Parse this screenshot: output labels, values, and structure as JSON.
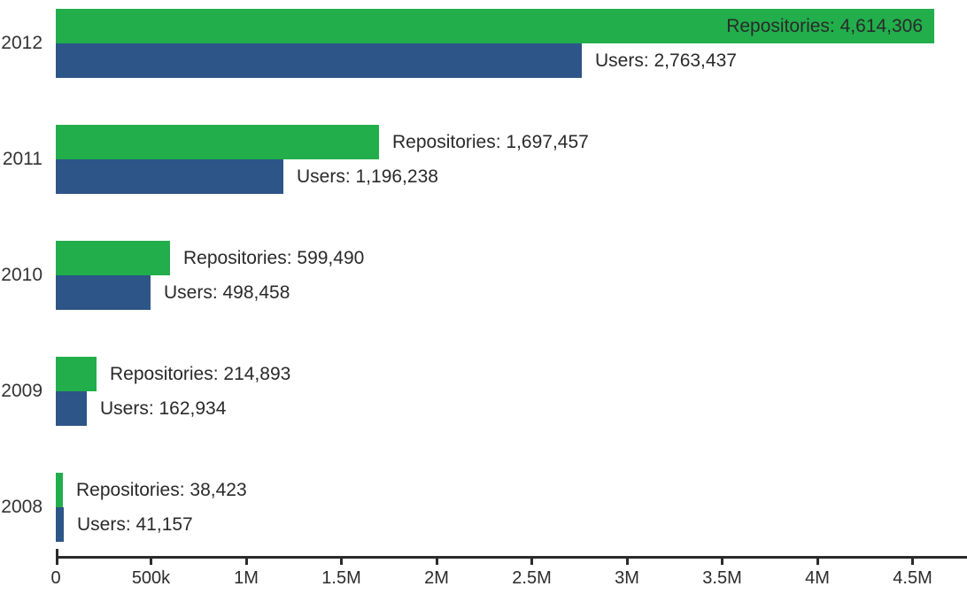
{
  "chart_data": {
    "type": "bar",
    "orientation": "horizontal",
    "title": "",
    "categories": [
      "2012",
      "2011",
      "2010",
      "2009",
      "2008"
    ],
    "series": [
      {
        "name": "Repositories",
        "color": "#21ae4b",
        "values": [
          4614306,
          1697457,
          599490,
          214893,
          38423
        ],
        "labels": [
          "Repositories: 4,614,306",
          "Repositories: 1,697,457",
          "Repositories: 599,490",
          "Repositories: 214,893",
          "Repositories: 38,423"
        ],
        "label_placement": [
          "inside",
          "outside",
          "outside",
          "outside",
          "outside"
        ]
      },
      {
        "name": "Users",
        "color": "#2d5588",
        "values": [
          2763437,
          1196238,
          498458,
          162934,
          41157
        ],
        "labels": [
          "Users: 2,763,437",
          "Users: 1,196,238",
          "Users: 498,458",
          "Users: 162,934",
          "Users: 41,157"
        ],
        "label_placement": [
          "outside",
          "outside",
          "outside",
          "outside",
          "outside"
        ]
      }
    ],
    "x_axis": {
      "tick_labels": [
        "0",
        "500k",
        "1M",
        "1.5M",
        "2M",
        "2.5M",
        "3M",
        "3.5M",
        "4M",
        "4.5M"
      ],
      "tick_values": [
        0,
        500000,
        1000000,
        1500000,
        2000000,
        2500000,
        3000000,
        3500000,
        4000000,
        4500000
      ],
      "range_max": 4790000,
      "grid": false
    },
    "legend": null,
    "colors": {
      "repositories_green": "#21ae4b",
      "users_blue": "#2d5588",
      "text": "#2a2a2a",
      "axis": "#2b2b2b",
      "background": "#ffffff"
    }
  }
}
